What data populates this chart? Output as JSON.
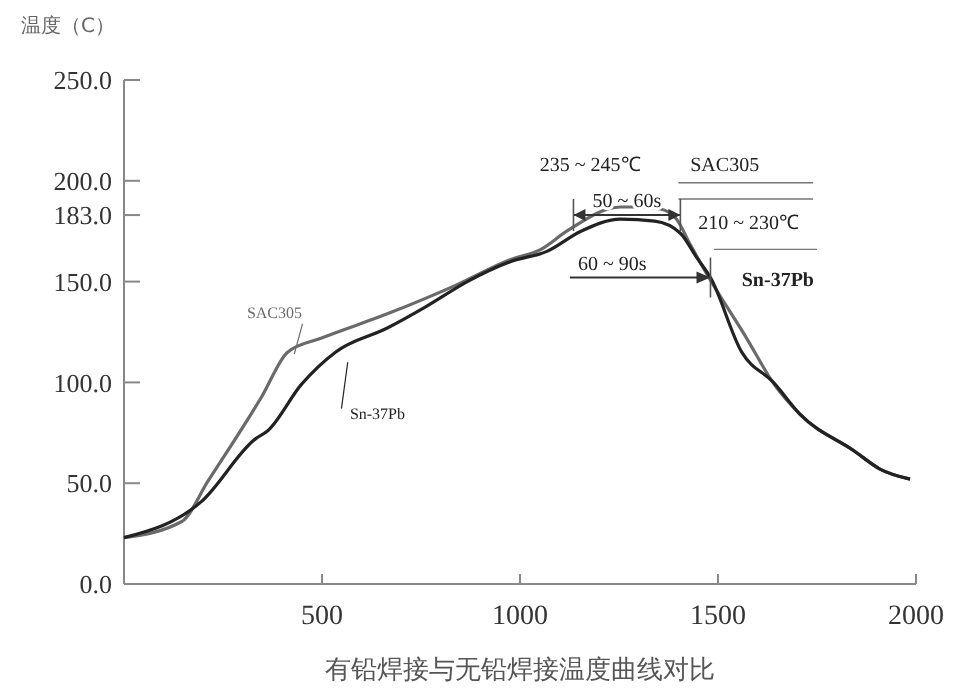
{
  "chart_data": {
    "type": "line",
    "title": "有铅焊接与无铅焊接温度曲线对比",
    "ylabel": "温度（C）",
    "xlim": [
      0,
      2000
    ],
    "xticks": [
      500,
      1000,
      1500,
      2000
    ],
    "ylim": [
      0,
      250
    ],
    "yticks": [
      {
        "value": 0,
        "label": "0.0"
      },
      {
        "value": 50,
        "label": "50.0"
      },
      {
        "value": 100,
        "label": "100.0"
      },
      {
        "value": 150,
        "label": "150.0"
      },
      {
        "value": 183,
        "label": "183.0"
      },
      {
        "value": 200,
        "label": "200.0"
      },
      {
        "value": 250,
        "label": "250.0"
      }
    ],
    "grid": false,
    "marker": "none",
    "line_style": "solid",
    "series": [
      {
        "name": "SAC305",
        "color": "#6a6a6a",
        "x": [
          0,
          146,
          212,
          348,
          413,
          499,
          665,
          836,
          977,
          1053,
          1118,
          1254,
          1305,
          1355,
          1395,
          1431,
          1471,
          1572,
          1642,
          1708,
          1844,
          1909,
          1985
        ],
        "values": [
          23,
          31,
          51,
          93,
          115,
          122,
          134,
          148,
          161,
          166,
          175,
          187,
          187,
          186,
          181,
          168,
          154,
          122,
          99,
          84,
          66,
          57,
          52
        ]
      },
      {
        "name": "Sn-37Pb",
        "color": "#222222",
        "x": [
          0,
          196,
          332,
          363,
          448,
          534,
          665,
          766,
          867,
          977,
          1068,
          1154,
          1254,
          1340,
          1405,
          1446,
          1481,
          1560,
          1640,
          1708,
          1844,
          1909,
          1985
        ],
        "values": [
          23,
          41,
          72,
          76,
          99,
          115,
          127,
          138,
          150,
          160,
          165,
          175,
          181,
          180,
          174,
          162,
          152,
          115,
          100,
          84,
          66,
          57,
          52
        ]
      }
    ],
    "annotations": [
      "235 ~ 245℃",
      "SAC305",
      {
        "text": "50 ~ 60s",
        "x": 1270,
        "y": 183
      },
      "210 ~ 230℃",
      {
        "text": "60 ~ 90s",
        "x": 1481,
        "y": 152
      },
      "Sn-37Pb"
    ]
  }
}
